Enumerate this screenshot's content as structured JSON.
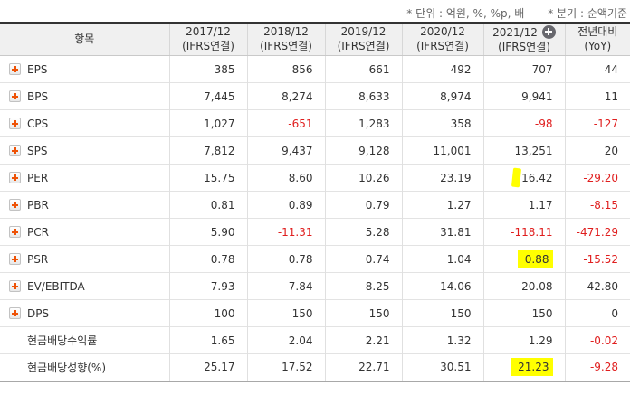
{
  "notes": {
    "unit_note": "* 단위 : 억원, %, %p, 배",
    "basis_note": "* 분기 : 순액기준"
  },
  "colors": {
    "negative_red": "#e01e1e",
    "highlight_yellow": "#ffff00",
    "expand_plus_orange": "#ee5206",
    "header_bg": "#f0f0f0",
    "top_border": "#333333"
  },
  "table": {
    "item_header": "항목",
    "columns": [
      {
        "line1": "2017/12",
        "line2": "(IFRS연결)",
        "plus_icon": false
      },
      {
        "line1": "2018/12",
        "line2": "(IFRS연결)",
        "plus_icon": false
      },
      {
        "line1": "2019/12",
        "line2": "(IFRS연결)",
        "plus_icon": false
      },
      {
        "line1": "2020/12",
        "line2": "(IFRS연결)",
        "plus_icon": false
      },
      {
        "line1": "2021/12",
        "line2": "(IFRS연결)",
        "plus_icon": true
      },
      {
        "line1": "전년대비",
        "line2": "(YoY)",
        "plus_icon": false
      }
    ],
    "rows": [
      {
        "label": "EPS",
        "icon": true,
        "values": [
          {
            "text": "385"
          },
          {
            "text": "856"
          },
          {
            "text": "661"
          },
          {
            "text": "492"
          },
          {
            "text": "707"
          },
          {
            "text": "44"
          }
        ]
      },
      {
        "label": "BPS",
        "icon": true,
        "values": [
          {
            "text": "7,445"
          },
          {
            "text": "8,274"
          },
          {
            "text": "8,633"
          },
          {
            "text": "8,974"
          },
          {
            "text": "9,941"
          },
          {
            "text": "11"
          }
        ]
      },
      {
        "label": "CPS",
        "icon": true,
        "values": [
          {
            "text": "1,027"
          },
          {
            "text": "-651",
            "neg": true
          },
          {
            "text": "1,283"
          },
          {
            "text": "358"
          },
          {
            "text": "-98",
            "neg": true
          },
          {
            "text": "-127",
            "neg": true
          }
        ]
      },
      {
        "label": "SPS",
        "icon": true,
        "values": [
          {
            "text": "7,812"
          },
          {
            "text": "9,437"
          },
          {
            "text": "9,128"
          },
          {
            "text": "11,001"
          },
          {
            "text": "13,251"
          },
          {
            "text": "20"
          }
        ]
      },
      {
        "label": "PER",
        "icon": true,
        "values": [
          {
            "text": "15.75"
          },
          {
            "text": "8.60"
          },
          {
            "text": "10.26"
          },
          {
            "text": "23.19"
          },
          {
            "text": "16.42",
            "hl": "mark"
          },
          {
            "text": "-29.20",
            "neg": true
          }
        ]
      },
      {
        "label": "PBR",
        "icon": true,
        "values": [
          {
            "text": "0.81"
          },
          {
            "text": "0.89"
          },
          {
            "text": "0.79"
          },
          {
            "text": "1.27"
          },
          {
            "text": "1.17"
          },
          {
            "text": "-8.15",
            "neg": true
          }
        ]
      },
      {
        "label": "PCR",
        "icon": true,
        "values": [
          {
            "text": "5.90"
          },
          {
            "text": "-11.31",
            "neg": true
          },
          {
            "text": "5.28"
          },
          {
            "text": "31.81"
          },
          {
            "text": "-118.11",
            "neg": true
          },
          {
            "text": "-471.29",
            "neg": true
          }
        ]
      },
      {
        "label": "PSR",
        "icon": true,
        "values": [
          {
            "text": "0.78"
          },
          {
            "text": "0.78"
          },
          {
            "text": "0.74"
          },
          {
            "text": "1.04"
          },
          {
            "text": "0.88",
            "hl": "full"
          },
          {
            "text": "-15.52",
            "neg": true
          }
        ]
      },
      {
        "label": "EV/EBITDA",
        "icon": true,
        "values": [
          {
            "text": "7.93"
          },
          {
            "text": "7.84"
          },
          {
            "text": "8.25"
          },
          {
            "text": "14.06"
          },
          {
            "text": "20.08"
          },
          {
            "text": "42.80"
          }
        ]
      },
      {
        "label": "DPS",
        "icon": true,
        "values": [
          {
            "text": "100"
          },
          {
            "text": "150"
          },
          {
            "text": "150"
          },
          {
            "text": "150"
          },
          {
            "text": "150"
          },
          {
            "text": "0"
          }
        ]
      },
      {
        "label": "현금배당수익률",
        "icon": false,
        "values": [
          {
            "text": "1.65"
          },
          {
            "text": "2.04"
          },
          {
            "text": "2.21"
          },
          {
            "text": "1.32"
          },
          {
            "text": "1.29"
          },
          {
            "text": "-0.02",
            "neg": true
          }
        ]
      },
      {
        "label": "현금배당성향(%)",
        "icon": false,
        "values": [
          {
            "text": "25.17"
          },
          {
            "text": "17.52"
          },
          {
            "text": "22.71"
          },
          {
            "text": "30.51"
          },
          {
            "text": "21.23",
            "hl": "full"
          },
          {
            "text": "-9.28",
            "neg": true
          }
        ]
      }
    ]
  }
}
